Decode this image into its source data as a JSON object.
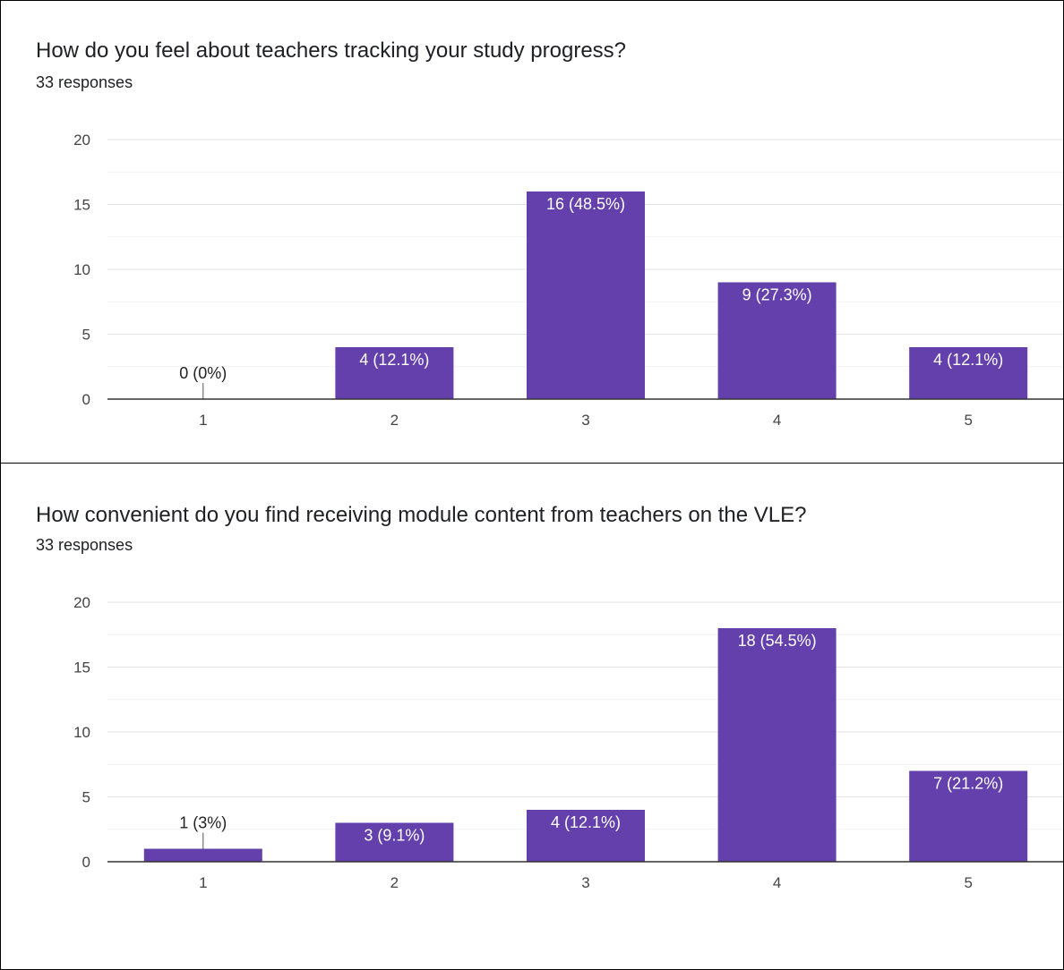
{
  "chart_data": [
    {
      "type": "bar",
      "title": "How do you feel about teachers tracking your study progress?",
      "subtitle": "33 responses",
      "categories": [
        "1",
        "2",
        "3",
        "4",
        "5"
      ],
      "values": [
        0,
        4,
        16,
        9,
        4
      ],
      "data_labels": [
        "0 (0%)",
        "4 (12.1%)",
        "16 (48.5%)",
        "9 (27.3%)",
        "4 (12.1%)"
      ],
      "yticks": [
        0,
        5,
        10,
        15,
        20
      ],
      "ylim": [
        0,
        20
      ],
      "grid": true,
      "bar_color": "#6340ac"
    },
    {
      "type": "bar",
      "title": "How convenient do you find receiving module content from teachers on the VLE?",
      "subtitle": "33 responses",
      "categories": [
        "1",
        "2",
        "3",
        "4",
        "5"
      ],
      "values": [
        1,
        3,
        4,
        18,
        7
      ],
      "data_labels": [
        "1 (3%)",
        "3 (9.1%)",
        "4 (12.1%)",
        "18 (54.5%)",
        "7 (21.2%)"
      ],
      "yticks": [
        0,
        5,
        10,
        15,
        20
      ],
      "ylim": [
        0,
        20
      ],
      "grid": true,
      "bar_color": "#6340ac"
    }
  ]
}
